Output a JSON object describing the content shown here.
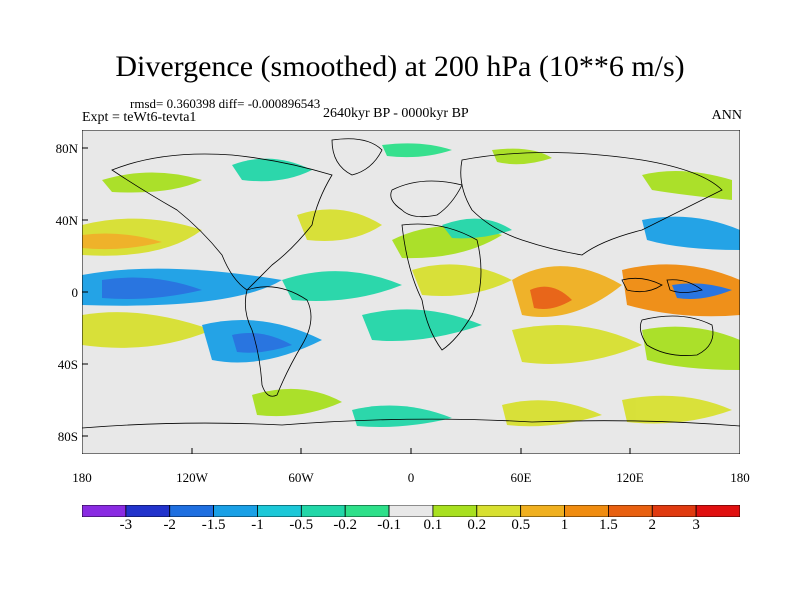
{
  "title": "Divergence (smoothed) at 200 hPa (10**6 m/s)",
  "stats": "rmsd= 0.360398 diff= -0.000896543",
  "experiment": "Expt = teWt6-tevta1",
  "period": "2640kyr BP - 0000kyr BP",
  "season": "ANN",
  "lat_labels": [
    "80N",
    "40N",
    "0",
    "40S",
    "80S"
  ],
  "lon_labels": [
    "180",
    "120W",
    "60W",
    "0",
    "60E",
    "120E",
    "180"
  ],
  "colorbar": {
    "labels": [
      "-3",
      "-2",
      "-1.5",
      "-1",
      "-0.5",
      "-0.2",
      "-0.1",
      "0.1",
      "0.2",
      "0.5",
      "1",
      "1.5",
      "2",
      "3"
    ],
    "colors": [
      "#8a2be2",
      "#2233cc",
      "#1f6fe0",
      "#1aa0e6",
      "#1cc8d8",
      "#22d7a8",
      "#2ee08a",
      "#e8e8e8",
      "#a8e020",
      "#d8e030",
      "#f0b020",
      "#f08c10",
      "#e86010",
      "#e03a10",
      "#e01010"
    ]
  }
}
